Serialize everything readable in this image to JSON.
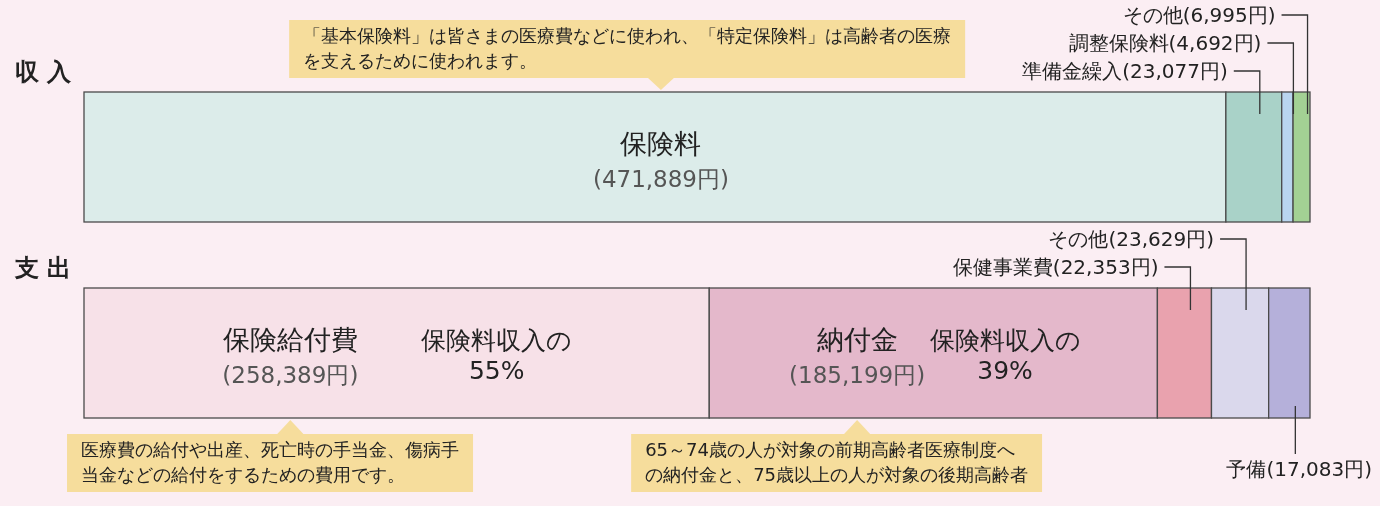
{
  "chart_data": {
    "type": "bar",
    "orientation": "horizontal",
    "stacked": true,
    "categories": [
      "収 入",
      "支 出"
    ],
    "series": [
      {
        "name": "保険料",
        "color": "#dcecea",
        "values": [
          471889,
          null
        ],
        "value_labels": [
          "(471,889円)",
          null
        ]
      },
      {
        "name": "準備金繰入",
        "color": "#a9d2c8",
        "values": [
          23077,
          null
        ],
        "value_labels": [
          "(23,077円)",
          null
        ]
      },
      {
        "name": "調整保険料",
        "color": "#b9d5ef",
        "values": [
          4692,
          null
        ],
        "value_labels": [
          "(4,692円)",
          null
        ]
      },
      {
        "name": "その他",
        "color": "#a3d194",
        "values": [
          6995,
          null
        ],
        "value_labels": [
          "(6,995円)",
          null
        ]
      },
      {
        "name": "保険給付費",
        "color": "#f7e1e8",
        "values": [
          null,
          258389
        ],
        "value_labels": [
          null,
          "(258,389円)"
        ]
      },
      {
        "name": "納付金",
        "color": "#e4b8cb",
        "values": [
          null,
          185199
        ],
        "value_labels": [
          null,
          "(185,199円)"
        ]
      },
      {
        "name": "保健事業費",
        "color": "#e9a2ae",
        "values": [
          null,
          22353
        ],
        "value_labels": [
          null,
          "(22,353円)"
        ]
      },
      {
        "name": "その他",
        "color": "#dad8ec",
        "values": [
          null,
          23629
        ],
        "value_labels": [
          null,
          "(23,629円)"
        ]
      },
      {
        "name": "予備",
        "color": "#b5b0da",
        "values": [
          null,
          17083
        ],
        "value_labels": [
          null,
          "(17,083円)"
        ]
      }
    ],
    "annotations": [
      "「基本保険料」は皆さまの医療費などに使われ、「特定保険料」は高齢者の医療を支えるために使われます。",
      "医療費の給付や出産、死亡時の手当金、傷病手当金などの給付をするための費用です。",
      "65～74歳の人が対象の前期高齢者医療制度への納付金と、75歳以上の人が対象の後期高齢者",
      "保険料収入の55%",
      "保険料収入の39%"
    ]
  }
}
